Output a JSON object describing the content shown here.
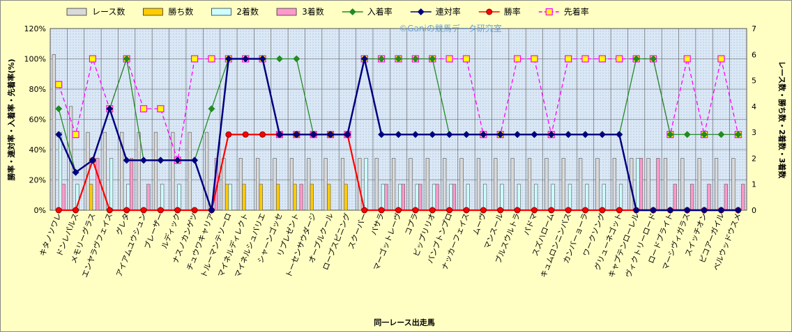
{
  "chart_data": {
    "type": "bar-line-combo",
    "watermark": "©Ganiの競馬データ研究室",
    "xlabel": "同一レース出走馬",
    "ylabel_left": "勝率・連対率・入着率・先着率(%)",
    "ylabel_right": "レース数・勝ち数・2着数・3着数",
    "ylim_left": [
      0,
      120
    ],
    "ylim_right": [
      0,
      7
    ],
    "yticks_left": [
      "0%",
      "20%",
      "40%",
      "60%",
      "80%",
      "100%",
      "120%"
    ],
    "yticks_right": [
      "0",
      "1",
      "2",
      "3",
      "4",
      "5",
      "6",
      "7"
    ],
    "grid": true,
    "legend_position": "top",
    "categories": [
      "キタノソワレ",
      "ドンレパルス",
      "メモリーグラス",
      "エンヤラヴフェイス",
      "グレタ",
      "アイアムユウシュン",
      "ブレーザー",
      "ルディック",
      "ナスノカンゲツ",
      "チュウワキャリア",
      "トルーマンテソーロ",
      "マイネルディレクト",
      "マイネルシュバリエ",
      "シャーンゴッセ",
      "リプレゼント",
      "トーセンサウダージ",
      "オーブルクール",
      "ロープスピニング",
      "スクーバー",
      "バサラ",
      "マーゴットレーヴ",
      "コプラ",
      "ビップリリオ",
      "バンブトンプロ",
      "ナッカーフェイス",
      "ムーヴ",
      "マンスール",
      "ブルスウルトラ",
      "パドマ",
      "スズハローム",
      "キュムロンニンバス",
      "カンバーョーラ",
      "ワークソング",
      "グリューネゴット",
      "キャプテンローレル",
      "ヴィクトリーロード",
      "ロードブライト",
      "マーシヴィガラス",
      "スイッチオン",
      "ピコアーガイル",
      "ベルウッドウスメ"
    ],
    "series": [
      {
        "name": "レース数",
        "kind": "bar",
        "axis": "right",
        "color": "#d9d9d9",
        "values": [
          6,
          4,
          3,
          3,
          3,
          3,
          3,
          3,
          3,
          3,
          2,
          2,
          2,
          2,
          2,
          2,
          2,
          2,
          2,
          2,
          2,
          2,
          2,
          2,
          2,
          2,
          2,
          2,
          2,
          2,
          2,
          2,
          2,
          2,
          2,
          2,
          2,
          2,
          2,
          2,
          2
        ]
      },
      {
        "name": "勝ち数",
        "kind": "bar",
        "axis": "right",
        "color": "#ffcc00",
        "values": [
          0,
          0,
          1,
          0,
          0,
          0,
          0,
          0,
          0,
          0,
          1,
          1,
          1,
          1,
          1,
          1,
          1,
          1,
          0,
          0,
          0,
          0,
          0,
          0,
          0,
          0,
          0,
          0,
          0,
          0,
          0,
          0,
          0,
          0,
          0,
          0,
          0,
          0,
          0,
          0,
          0
        ]
      },
      {
        "name": "2着数",
        "kind": "bar",
        "axis": "right",
        "color": "#ccffff",
        "values": [
          3,
          1,
          0,
          2,
          1,
          0,
          1,
          1,
          0,
          0,
          1,
          0,
          0,
          0,
          0,
          0,
          0,
          0,
          2,
          1,
          1,
          1,
          1,
          1,
          1,
          1,
          1,
          1,
          1,
          1,
          1,
          1,
          1,
          1,
          2,
          0,
          0,
          0,
          0,
          0,
          0
        ]
      },
      {
        "name": "3着数",
        "kind": "bar",
        "axis": "right",
        "color": "#ff99cc",
        "values": [
          1,
          0,
          2,
          0,
          2,
          1,
          0,
          0,
          0,
          2,
          0,
          0,
          0,
          0,
          1,
          0,
          0,
          0,
          0,
          1,
          1,
          1,
          1,
          1,
          0,
          0,
          0,
          0,
          0,
          0,
          0,
          0,
          0,
          0,
          2,
          2,
          1,
          1,
          1,
          1,
          1
        ]
      },
      {
        "name": "入着率",
        "kind": "line",
        "axis": "left",
        "color": "#228b22",
        "marker": "diamond",
        "values": [
          67,
          25,
          33,
          67,
          100,
          33,
          33,
          33,
          33,
          67,
          100,
          100,
          100,
          100,
          100,
          50,
          50,
          50,
          100,
          100,
          100,
          100,
          100,
          50,
          50,
          50,
          50,
          50,
          50,
          50,
          50,
          50,
          50,
          50,
          100,
          100,
          50,
          50,
          50,
          50,
          50
        ]
      },
      {
        "name": "連対率",
        "kind": "line",
        "axis": "left",
        "color": "#000080",
        "marker": "diamond",
        "values": [
          50,
          25,
          33,
          67,
          33,
          33,
          33,
          33,
          33,
          0,
          100,
          100,
          100,
          50,
          50,
          50,
          50,
          50,
          100,
          50,
          50,
          50,
          50,
          50,
          50,
          50,
          50,
          50,
          50,
          50,
          50,
          50,
          50,
          50,
          0,
          0,
          0,
          0,
          0,
          0,
          0
        ]
      },
      {
        "name": "勝率",
        "kind": "line",
        "axis": "left",
        "color": "#ff0000",
        "marker": "circle",
        "values": [
          0,
          0,
          33,
          0,
          0,
          0,
          0,
          0,
          0,
          0,
          50,
          50,
          50,
          50,
          50,
          50,
          50,
          50,
          0,
          0,
          0,
          0,
          0,
          0,
          0,
          0,
          0,
          0,
          0,
          0,
          0,
          0,
          0,
          0,
          0,
          0,
          0,
          0,
          0,
          0,
          0
        ]
      },
      {
        "name": "先着率",
        "kind": "line",
        "axis": "left",
        "color": "#ff00ff",
        "marker": "square",
        "dashed": true,
        "values": [
          83,
          50,
          100,
          67,
          100,
          67,
          67,
          33,
          100,
          100,
          100,
          100,
          100,
          50,
          50,
          50,
          50,
          50,
          100,
          100,
          100,
          100,
          100,
          100,
          100,
          50,
          50,
          100,
          100,
          50,
          100,
          100,
          100,
          100,
          100,
          100,
          50,
          100,
          50,
          100,
          50
        ]
      }
    ]
  }
}
